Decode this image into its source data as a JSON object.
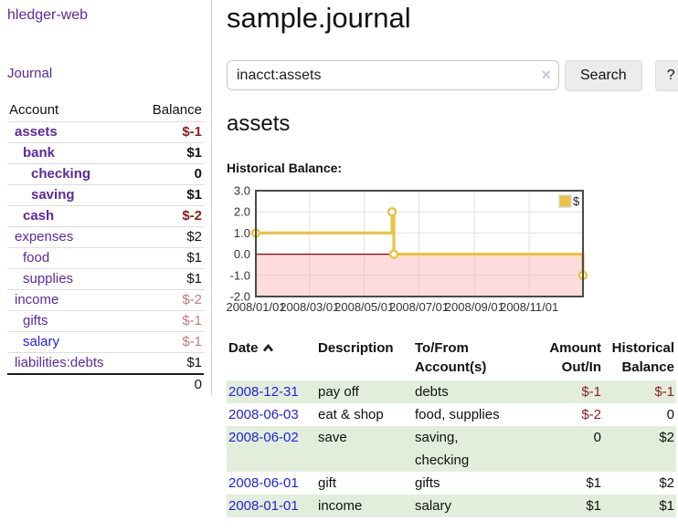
{
  "sidebar": {
    "brand": "hledger-web",
    "journal_link": "Journal",
    "accounts_table": {
      "header_account": "Account",
      "header_balance": "Balance",
      "rows": [
        {
          "name": "assets",
          "balance": "$-1",
          "indent": 0,
          "bold": true,
          "name_color": "purple",
          "balance_style": "neg"
        },
        {
          "name": "bank",
          "balance": "$1",
          "indent": 1,
          "bold": true,
          "name_color": "purple",
          "balance_style": "black"
        },
        {
          "name": "checking",
          "balance": "0",
          "indent": 2,
          "bold": true,
          "name_color": "purple",
          "balance_style": "black"
        },
        {
          "name": "saving",
          "balance": "$1",
          "indent": 2,
          "bold": true,
          "name_color": "purple",
          "balance_style": "black"
        },
        {
          "name": "cash",
          "balance": "$-2",
          "indent": 1,
          "bold": true,
          "name_color": "purple",
          "balance_style": "neg"
        },
        {
          "name": "expenses",
          "balance": "$2",
          "indent": 0,
          "bold": false,
          "name_color": "purple",
          "balance_style": "black"
        },
        {
          "name": "food",
          "balance": "$1",
          "indent": 1,
          "bold": false,
          "name_color": "purple",
          "balance_style": "black"
        },
        {
          "name": "supplies",
          "balance": "$1",
          "indent": 1,
          "bold": false,
          "name_color": "purple",
          "balance_style": "black"
        },
        {
          "name": "income",
          "balance": "$-2",
          "indent": 0,
          "bold": false,
          "name_color": "purple",
          "balance_style": "neg-light"
        },
        {
          "name": "gifts",
          "balance": "$-1",
          "indent": 1,
          "bold": false,
          "name_color": "purple",
          "balance_style": "neg-light"
        },
        {
          "name": "salary",
          "balance": "$-1",
          "indent": 1,
          "bold": false,
          "name_color": "blue",
          "balance_style": "neg-light"
        },
        {
          "name": "liabilities:debts",
          "balance": "$1",
          "indent": 0,
          "bold": false,
          "name_color": "purple",
          "balance_style": "black"
        }
      ],
      "total": "0"
    }
  },
  "main": {
    "title": "sample.journal",
    "search": {
      "value": "inacct:assets",
      "clear_icon": "×",
      "search_button": "Search",
      "help_button": "?"
    },
    "account_heading": "assets",
    "chart_heading": "Historical Balance:"
  },
  "chart_data": {
    "type": "line",
    "title": "Historical Balance:",
    "steps": true,
    "series": [
      {
        "name": "$",
        "color": "#e9c342",
        "points": [
          [
            "2008-01-01",
            1
          ],
          [
            "2008-06-01",
            2
          ],
          [
            "2008-06-03",
            0
          ],
          [
            "2008-12-31",
            -1
          ]
        ]
      }
    ],
    "xlim": [
      "2008-01-01",
      "2008-12-31"
    ],
    "ylim": [
      -2,
      3
    ],
    "y_ticks": [
      3.0,
      2.0,
      1.0,
      0.0,
      -1.0,
      -2.0
    ],
    "x_ticks": [
      "2008/01/01",
      "2008/03/01",
      "2008/05/01",
      "2008/07/01",
      "2008/09/01",
      "2008/11/01"
    ],
    "grid": true,
    "legend_position": "top-right",
    "legend_label": "$",
    "negative_region_color": "#fbd9d9",
    "zero_line_color": "#8b0000",
    "border_color": "#4a4a4a",
    "grid_color": "#e0e0e0"
  },
  "transactions": {
    "headers": {
      "date": "Date",
      "description": "Description",
      "tofrom": "To/From Account(s)",
      "amount": "Amount Out/In",
      "balance": "Historical Balance"
    },
    "rows": [
      {
        "date": "2008-12-31",
        "description": "pay off",
        "tofrom": "debts",
        "amount": "$-1",
        "amount_style": "neg",
        "balance": "$-1",
        "balance_style": "neg",
        "highlight": true
      },
      {
        "date": "2008-06-03",
        "description": "eat & shop",
        "tofrom": "food, supplies",
        "amount": "$-2",
        "amount_style": "neg",
        "balance": "0",
        "balance_style": "black",
        "highlight": false
      },
      {
        "date": "2008-06-02",
        "description": "save",
        "tofrom": "saving,\nchecking",
        "amount": "0",
        "amount_style": "black",
        "balance": "$2",
        "balance_style": "black",
        "highlight": true
      },
      {
        "date": "2008-06-01",
        "description": "gift",
        "tofrom": "gifts",
        "amount": "$1",
        "amount_style": "black",
        "balance": "$2",
        "balance_style": "black",
        "highlight": false
      },
      {
        "date": "2008-01-01",
        "description": "income",
        "tofrom": "salary",
        "amount": "$1",
        "amount_style": "black",
        "balance": "$1",
        "balance_style": "black",
        "highlight": true
      }
    ]
  },
  "colors": {
    "link_purple": "#5b2a9d",
    "link_blue": "#2222dd",
    "negative_strong": "#8f1d1d",
    "negative_light": "#bd7b7b",
    "row_highlight_green": "#e2eedb",
    "chart_line_gold": "#e9c342",
    "chart_negative_pink": "#fbd9d9",
    "chart_zero_line": "#8b0000",
    "button_bg": "#ececec"
  }
}
